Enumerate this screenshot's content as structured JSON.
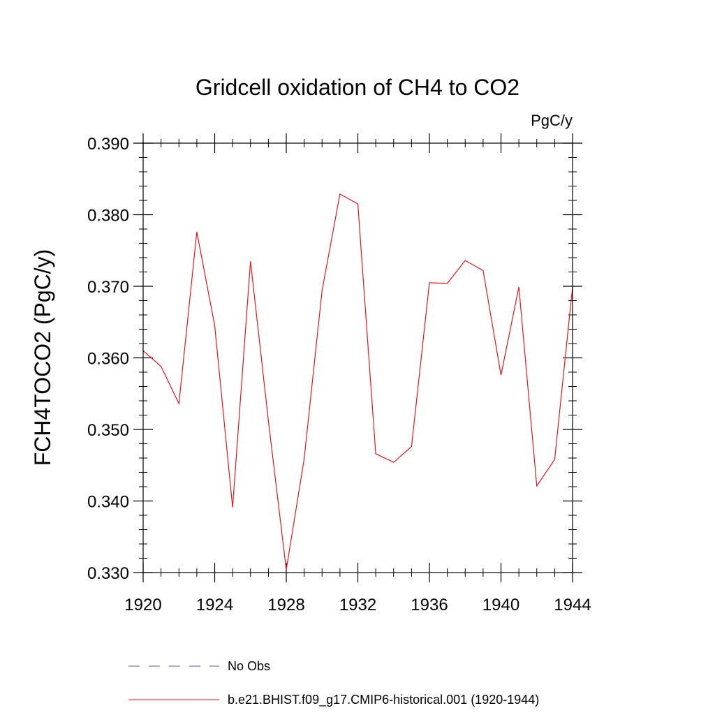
{
  "chart_data": {
    "type": "line",
    "title": "Gridcell oxidation of CH4 to CO2",
    "units": "PgC/y",
    "xlabel": "",
    "ylabel": "FCH4TOCO2  (PgC/y)",
    "xlim": [
      1920,
      1944
    ],
    "ylim": [
      0.33,
      0.39
    ],
    "x_ticks": [
      1920,
      1924,
      1928,
      1932,
      1936,
      1940,
      1944
    ],
    "x_tick_labels": [
      "1920",
      "1924",
      "1928",
      "1932",
      "1936",
      "1940",
      "1944"
    ],
    "y_ticks": [
      0.33,
      0.34,
      0.35,
      0.36,
      0.37,
      0.38,
      0.39
    ],
    "y_tick_labels": [
      "0.330",
      "0.340",
      "0.350",
      "0.360",
      "0.370",
      "0.380",
      "0.390"
    ],
    "grid": false,
    "legend_position": "bottom",
    "series": [
      {
        "name": "b.e21.BHIST.f09_g17.CMIP6-historical.001 (1920-1944)",
        "color": "#e8141c",
        "style": "solid",
        "x": [
          1920,
          1921,
          1922,
          1923,
          1924,
          1925,
          1926,
          1927,
          1928,
          1929,
          1930,
          1931,
          1932,
          1933,
          1934,
          1935,
          1936,
          1937,
          1938,
          1939,
          1940,
          1941,
          1942,
          1943,
          1944
        ],
        "y": [
          0.361,
          0.3588,
          0.3536,
          0.3776,
          0.3645,
          0.3391,
          0.3735,
          0.3512,
          0.3304,
          0.3459,
          0.3694,
          0.3829,
          0.3815,
          0.3466,
          0.3454,
          0.3476,
          0.3705,
          0.3704,
          0.3736,
          0.3722,
          0.3576,
          0.3699,
          0.3421,
          0.3458,
          0.3699
        ]
      }
    ],
    "legend": [
      {
        "label": "No Obs",
        "color": "#5a5aa8",
        "style": "dashed"
      },
      {
        "label": "b.e21.BHIST.f09_g17.CMIP6-historical.001 (1920-1944)",
        "color": "#e8141c",
        "style": "solid"
      }
    ]
  }
}
